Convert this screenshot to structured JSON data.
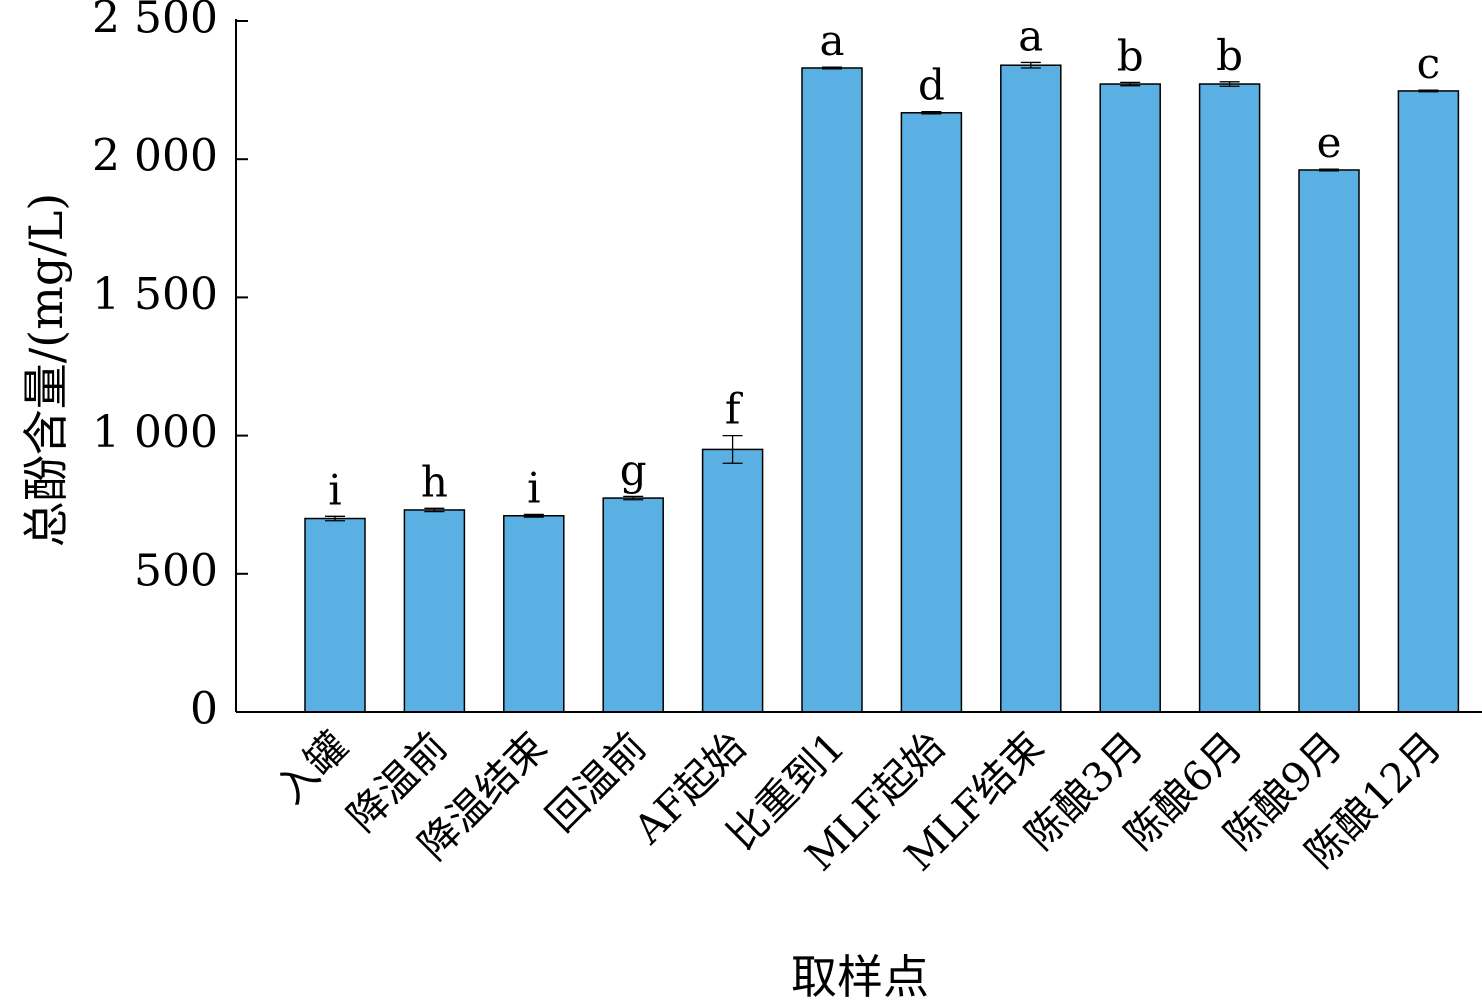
{
  "chart_data": {
    "type": "bar",
    "title": "",
    "xlabel": "取样点",
    "ylabel": "总酚含量/(mg/L)",
    "ylim": [
      0,
      2500
    ],
    "yticks": [
      0,
      500,
      1000,
      1500,
      2000,
      2500
    ],
    "ytick_labels": [
      "0",
      "500",
      "1 000",
      "1 500",
      "2 000",
      "2 500"
    ],
    "grid": false,
    "bar_color": "#5ab0e3",
    "categories": [
      "入罐",
      "降温前",
      "降温结束",
      "回温前",
      "AF起始",
      "比重到1",
      "MLF起始",
      "MLF结束",
      "陈酿3月",
      "陈酿6月",
      "陈酿9月",
      "陈酿12月"
    ],
    "values": [
      700,
      731,
      710,
      774,
      950,
      2330,
      2168,
      2340,
      2272,
      2272,
      1961,
      2247
    ],
    "errors": [
      8,
      6,
      5,
      6,
      50,
      3,
      4,
      10,
      6,
      8,
      3,
      3
    ],
    "significance_labels": [
      "i",
      "h",
      "i",
      "g",
      "f",
      "a",
      "d",
      "a",
      "b",
      "b",
      "e",
      "c"
    ]
  }
}
